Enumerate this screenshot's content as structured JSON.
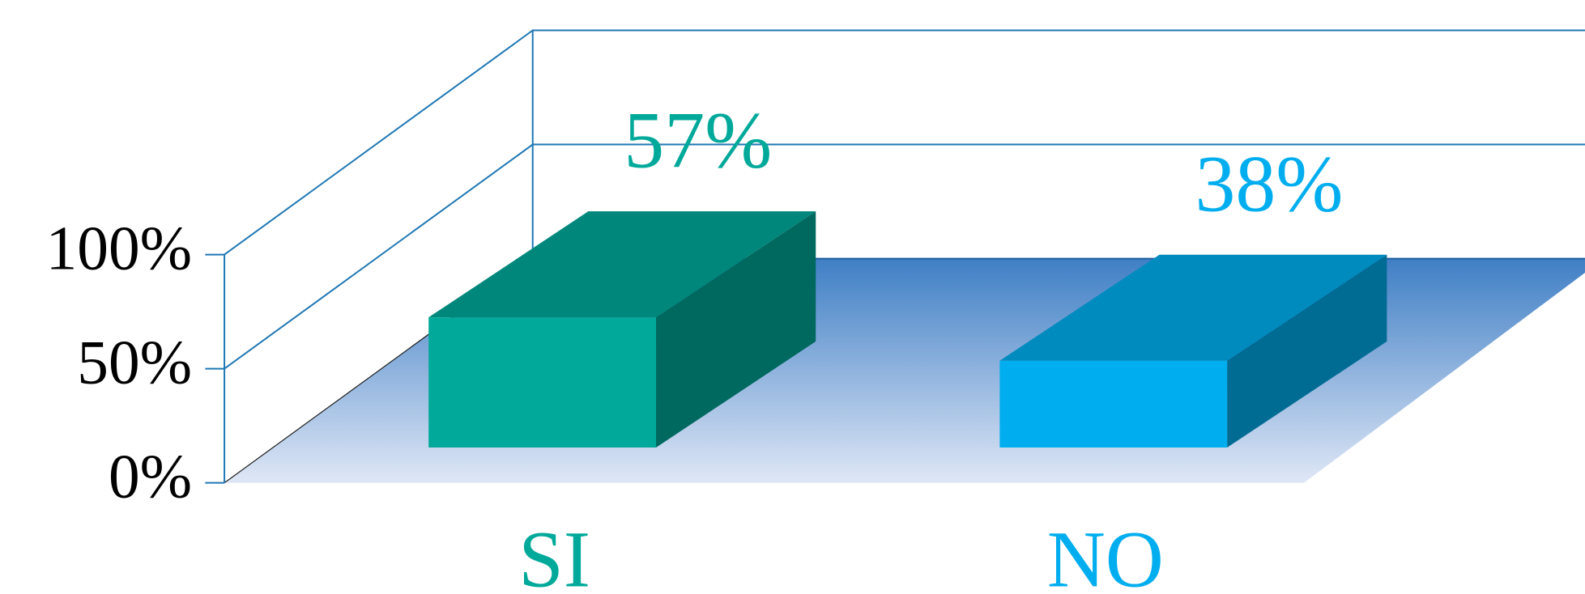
{
  "chart_data": {
    "type": "bar3d",
    "categories": [
      "SI",
      "NO"
    ],
    "values": [
      57,
      38
    ],
    "value_labels": [
      "57%",
      "38%"
    ],
    "colors": [
      "#00a99a",
      "#00aeef"
    ],
    "ylim": [
      0,
      100
    ],
    "yticks": [
      {
        "value": 0,
        "label": "0%"
      },
      {
        "value": 50,
        "label": "50%"
      },
      {
        "value": 100,
        "label": "100%"
      }
    ],
    "grid": true
  }
}
